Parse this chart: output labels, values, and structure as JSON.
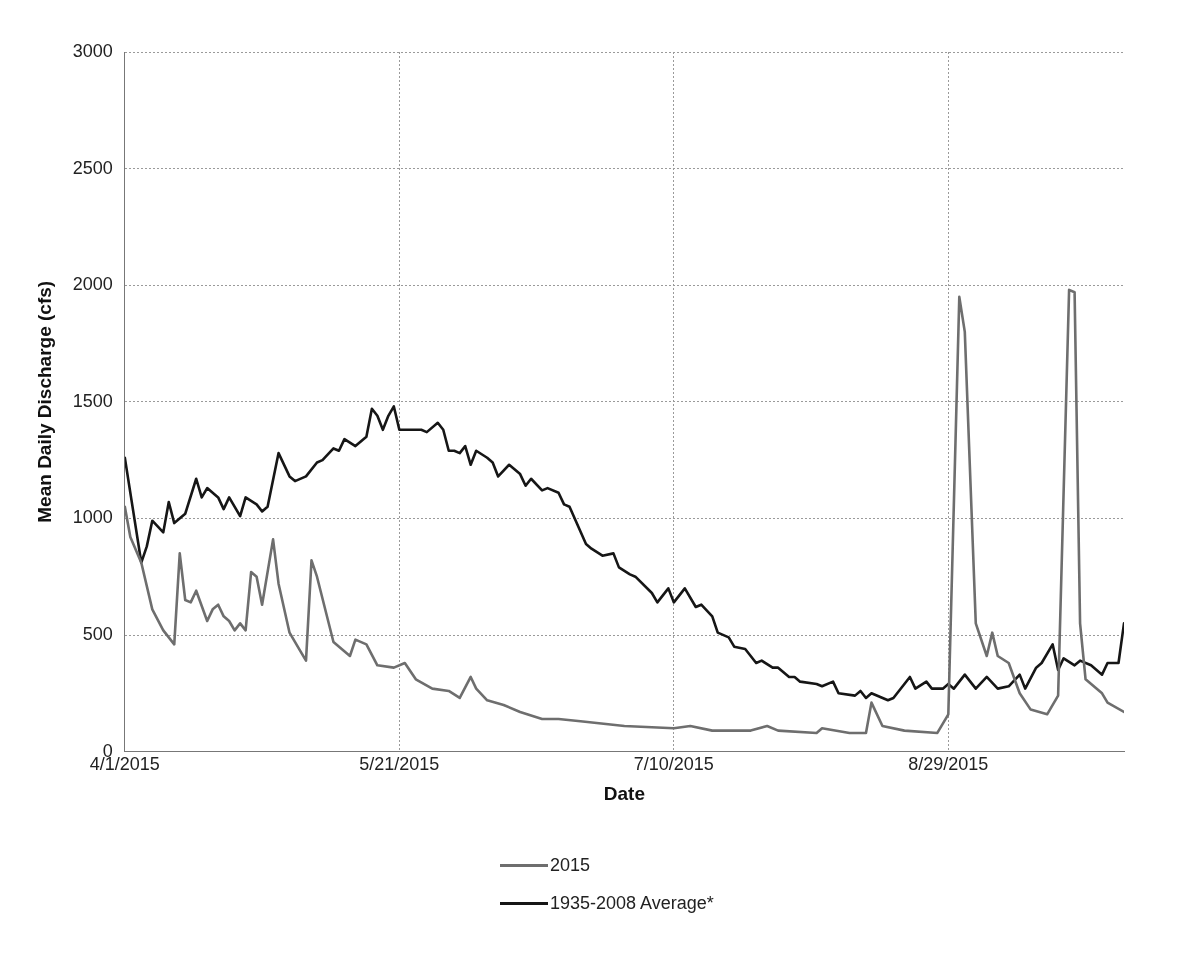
{
  "chart_data": {
    "type": "line",
    "xlabel": "Date",
    "ylabel": "Mean Daily Discharge (cfs)",
    "xlim": [
      "2015-04-01",
      "2015-09-30"
    ],
    "xticks": [
      {
        "value": "2015-04-01",
        "label": "4/1/2015"
      },
      {
        "value": "2015-05-21",
        "label": "5/21/2015"
      },
      {
        "value": "2015-07-10",
        "label": "7/10/2015"
      },
      {
        "value": "2015-08-29",
        "label": "8/29/2015"
      }
    ],
    "ylim": [
      0,
      3000
    ],
    "yticks": [
      0,
      500,
      1000,
      1500,
      2000,
      2500,
      3000
    ],
    "grid": true,
    "legend": "bottom",
    "marker": "none",
    "line_style": "solid",
    "series": [
      {
        "name": "2015",
        "color": "#6e6e6e",
        "x": [
          "2015-04-01",
          "2015-04-02",
          "2015-04-04",
          "2015-04-06",
          "2015-04-08",
          "2015-04-10",
          "2015-04-11",
          "2015-04-12",
          "2015-04-13",
          "2015-04-14",
          "2015-04-16",
          "2015-04-17",
          "2015-04-18",
          "2015-04-19",
          "2015-04-20",
          "2015-04-21",
          "2015-04-22",
          "2015-04-23",
          "2015-04-24",
          "2015-04-25",
          "2015-04-26",
          "2015-04-28",
          "2015-04-29",
          "2015-05-01",
          "2015-05-03",
          "2015-05-04",
          "2015-05-05",
          "2015-05-06",
          "2015-05-09",
          "2015-05-12",
          "2015-05-13",
          "2015-05-15",
          "2015-05-17",
          "2015-05-20",
          "2015-05-22",
          "2015-05-24",
          "2015-05-27",
          "2015-05-30",
          "2015-06-01",
          "2015-06-03",
          "2015-06-04",
          "2015-06-06",
          "2015-06-09",
          "2015-06-12",
          "2015-06-16",
          "2015-06-19",
          "2015-06-23",
          "2015-07-01",
          "2015-07-10",
          "2015-07-13",
          "2015-07-17",
          "2015-07-24",
          "2015-07-27",
          "2015-07-29",
          "2015-08-05",
          "2015-08-06",
          "2015-08-11",
          "2015-08-14",
          "2015-08-15",
          "2015-08-17",
          "2015-08-21",
          "2015-08-27",
          "2015-08-29",
          "2015-08-31",
          "2015-09-01",
          "2015-09-03",
          "2015-09-05",
          "2015-09-06",
          "2015-09-07",
          "2015-09-09",
          "2015-09-11",
          "2015-09-13",
          "2015-09-16",
          "2015-09-18",
          "2015-09-20",
          "2015-09-21",
          "2015-09-22",
          "2015-09-23",
          "2015-09-26",
          "2015-09-27",
          "2015-09-30"
        ],
        "values": [
          1050,
          920,
          810,
          610,
          520,
          460,
          850,
          650,
          640,
          690,
          560,
          610,
          630,
          580,
          560,
          520,
          550,
          520,
          770,
          750,
          630,
          910,
          720,
          510,
          430,
          390,
          820,
          750,
          470,
          410,
          480,
          460,
          370,
          360,
          380,
          310,
          270,
          260,
          230,
          320,
          270,
          220,
          200,
          170,
          140,
          140,
          130,
          110,
          100,
          110,
          90,
          90,
          110,
          90,
          80,
          100,
          80,
          80,
          210,
          110,
          90,
          80,
          160,
          1950,
          1800,
          550,
          410,
          510,
          410,
          380,
          250,
          180,
          160,
          240,
          1980,
          1970,
          550,
          310,
          250,
          210,
          170
        ]
      },
      {
        "name": "1935-2008 Average*",
        "color": "#161616",
        "x": [
          "2015-04-01",
          "2015-04-04",
          "2015-04-05",
          "2015-04-06",
          "2015-04-08",
          "2015-04-09",
          "2015-04-10",
          "2015-04-12",
          "2015-04-14",
          "2015-04-15",
          "2015-04-16",
          "2015-04-18",
          "2015-04-19",
          "2015-04-20",
          "2015-04-22",
          "2015-04-23",
          "2015-04-25",
          "2015-04-26",
          "2015-04-27",
          "2015-04-29",
          "2015-05-01",
          "2015-05-02",
          "2015-05-04",
          "2015-05-06",
          "2015-05-07",
          "2015-05-09",
          "2015-05-10",
          "2015-05-11",
          "2015-05-13",
          "2015-05-15",
          "2015-05-16",
          "2015-05-17",
          "2015-05-18",
          "2015-05-19",
          "2015-05-20",
          "2015-05-21",
          "2015-05-22",
          "2015-05-25",
          "2015-05-26",
          "2015-05-28",
          "2015-05-29",
          "2015-05-30",
          "2015-05-31",
          "2015-06-01",
          "2015-06-02",
          "2015-06-03",
          "2015-06-04",
          "2015-06-06",
          "2015-06-07",
          "2015-06-08",
          "2015-06-10",
          "2015-06-12",
          "2015-06-13",
          "2015-06-14",
          "2015-06-16",
          "2015-06-17",
          "2015-06-19",
          "2015-06-20",
          "2015-06-21",
          "2015-06-24",
          "2015-06-25",
          "2015-06-27",
          "2015-06-29",
          "2015-06-30",
          "2015-07-02",
          "2015-07-03",
          "2015-07-06",
          "2015-07-07",
          "2015-07-09",
          "2015-07-10",
          "2015-07-12",
          "2015-07-14",
          "2015-07-15",
          "2015-07-17",
          "2015-07-18",
          "2015-07-20",
          "2015-07-21",
          "2015-07-23",
          "2015-07-25",
          "2015-07-26",
          "2015-07-28",
          "2015-07-29",
          "2015-07-31",
          "2015-08-01",
          "2015-08-02",
          "2015-08-05",
          "2015-08-06",
          "2015-08-08",
          "2015-08-09",
          "2015-08-12",
          "2015-08-13",
          "2015-08-14",
          "2015-08-15",
          "2015-08-18",
          "2015-08-19",
          "2015-08-22",
          "2015-08-23",
          "2015-08-25",
          "2015-08-26",
          "2015-08-28",
          "2015-08-29",
          "2015-08-30",
          "2015-09-01",
          "2015-09-03",
          "2015-09-05",
          "2015-09-07",
          "2015-09-09",
          "2015-09-11",
          "2015-09-12",
          "2015-09-14",
          "2015-09-15",
          "2015-09-17",
          "2015-09-18",
          "2015-09-19",
          "2015-09-21",
          "2015-09-22",
          "2015-09-24",
          "2015-09-26",
          "2015-09-27",
          "2015-09-29",
          "2015-09-30"
        ],
        "values": [
          1260,
          810,
          880,
          990,
          940,
          1070,
          980,
          1020,
          1170,
          1090,
          1130,
          1090,
          1040,
          1090,
          1010,
          1090,
          1060,
          1030,
          1050,
          1280,
          1180,
          1160,
          1180,
          1240,
          1250,
          1300,
          1290,
          1340,
          1310,
          1350,
          1470,
          1440,
          1380,
          1440,
          1480,
          1380,
          1380,
          1380,
          1370,
          1410,
          1380,
          1290,
          1290,
          1280,
          1310,
          1230,
          1290,
          1260,
          1240,
          1180,
          1230,
          1190,
          1140,
          1170,
          1120,
          1130,
          1110,
          1060,
          1050,
          890,
          870,
          840,
          850,
          790,
          760,
          750,
          680,
          640,
          700,
          640,
          700,
          620,
          630,
          580,
          510,
          490,
          450,
          440,
          380,
          390,
          360,
          360,
          320,
          320,
          300,
          290,
          280,
          300,
          250,
          240,
          260,
          230,
          250,
          220,
          230,
          320,
          270,
          300,
          270,
          270,
          290,
          270,
          330,
          270,
          320,
          270,
          280,
          330,
          270,
          360,
          380,
          460,
          350,
          400,
          370,
          390,
          370,
          330,
          380,
          380,
          550
        ]
      }
    ]
  }
}
